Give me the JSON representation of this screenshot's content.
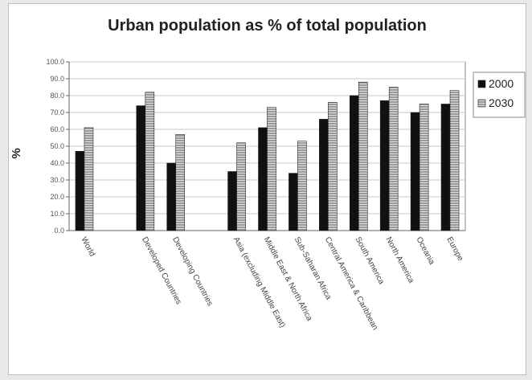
{
  "chart_data": {
    "type": "bar",
    "title": "Urban population as % of total population",
    "ylabel": "%",
    "xlabel": "",
    "ylim": [
      0,
      100
    ],
    "yticks": [
      "0.0",
      "10.0",
      "20.0",
      "30.0",
      "40.0",
      "50.0",
      "60.0",
      "70.0",
      "80.0",
      "90.0",
      "100.0"
    ],
    "grid": true,
    "legend_position": "right",
    "categories": [
      "World",
      "Developed Countries",
      "Developing Countries",
      "Asia (excluding Middle East)",
      "Middle East & North Africa",
      "Sub-Saharan Africa",
      "Central America & Caribbean",
      "South America",
      "North America",
      "Oceania",
      "Europe"
    ],
    "series": [
      {
        "name": "2000",
        "color": "#111111",
        "values": [
          47,
          74,
          40,
          35,
          61,
          34,
          66,
          80,
          77,
          70,
          75
        ]
      },
      {
        "name": "2030",
        "color": "#9a9a9a",
        "values": [
          61,
          82,
          57,
          52,
          73,
          53,
          76,
          88,
          85,
          75,
          83
        ]
      }
    ]
  }
}
